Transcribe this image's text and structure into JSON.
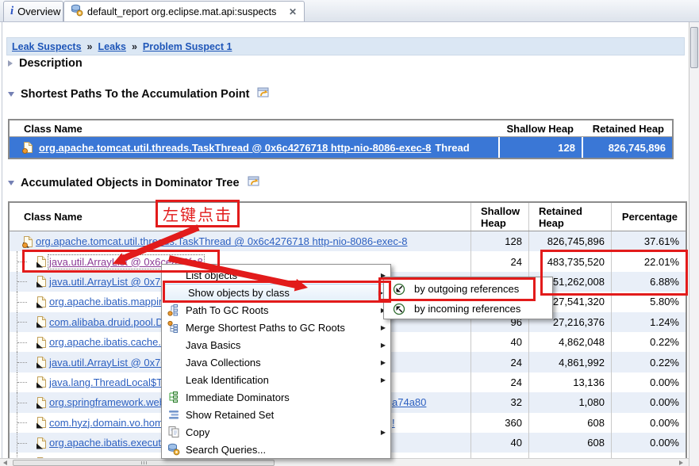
{
  "colors": {
    "selection_blue": "#3a77d6",
    "annotation_red": "#e21b1b",
    "link_blue": "#2b5fc0",
    "visited_purple": "#8b3a96"
  },
  "tabs": [
    {
      "label": "Overview",
      "active": false
    },
    {
      "label": "default_report org.eclipse.mat.api:suspects",
      "active": true
    }
  ],
  "breadcrumb": {
    "separator": "»",
    "items": [
      "Leak Suspects",
      "Leaks",
      "Problem Suspect 1"
    ]
  },
  "sections": {
    "description": {
      "title": "Description",
      "collapsed": true
    },
    "shortest_paths": {
      "title": "Shortest Paths To the Accumulation Point",
      "collapsed": false
    },
    "accumulated": {
      "title": "Accumulated Objects in Dominator Tree",
      "collapsed": false
    }
  },
  "paths_table": {
    "columns": [
      "Class Name",
      "Shallow Heap",
      "Retained Heap"
    ],
    "row": {
      "link": "org.apache.tomcat.util.threads.TaskThread @ 0x6c4276718 http-nio-8086-exec-8",
      "suffix": "Thread",
      "shallow": "128",
      "retained": "826,745,896"
    }
  },
  "dominator_table": {
    "columns": [
      "Class Name",
      "Shallow Heap",
      "Retained Heap",
      "Percentage"
    ],
    "rows": [
      {
        "level": 0,
        "root": true,
        "class_name": "org.apache.tomcat.util.threads.TaskThread @ 0x6c4276718 http-nio-8086-exec-8",
        "shallow": "128",
        "retained": "826,745,896",
        "pct": "37.61%"
      },
      {
        "level": 1,
        "selected": true,
        "visited": true,
        "class_name": "java.util.ArrayList @ 0x6cea76fa8",
        "shallow": "24",
        "retained": "483,735,520",
        "pct": "22.01%"
      },
      {
        "level": 1,
        "class_name": "java.util.ArrayList @ 0x70",
        "shallow": "",
        "retained": "151,262,008",
        "pct": "6.88%"
      },
      {
        "level": 1,
        "class_name": "org.apache.ibatis.mappin",
        "shallow": "",
        "retained": "127,541,320",
        "pct": "5.80%"
      },
      {
        "level": 1,
        "class_name": "com.alibaba.druid.pool.Dr",
        "shallow": "96",
        "retained": "27,216,376",
        "pct": "1.24%"
      },
      {
        "level": 1,
        "class_name": "org.apache.ibatis.cache.C",
        "shallow": "40",
        "retained": "4,862,048",
        "pct": "0.22%"
      },
      {
        "level": 1,
        "class_name": "java.util.ArrayList @ 0x70",
        "shallow": "24",
        "retained": "4,861,992",
        "pct": "0.22%"
      },
      {
        "level": 1,
        "class_name": "java.lang.ThreadLocal$Th",
        "shallow": "24",
        "retained": "13,136",
        "pct": "0.00%"
      },
      {
        "level": 1,
        "class_name": "org.springframework.web",
        "shallow": "32",
        "retained": "1,080",
        "pct": "0.00%"
      },
      {
        "level": 1,
        "class_name": "com.hyzj.domain.vo.hom",
        "shallow": "360",
        "retained": "608",
        "pct": "0.00%"
      },
      {
        "level": 1,
        "class_name": "org.apache.ibatis.executo",
        "shallow": "40",
        "retained": "608",
        "pct": "0.00%"
      },
      {
        "level": 1,
        "partial": true,
        "class_name": "",
        "shallow": "40",
        "retained": "448",
        "pct": "0.00%"
      }
    ],
    "fragments": [
      {
        "text": "a74a80"
      },
      {
        "text": "!"
      }
    ]
  },
  "context_menu": {
    "items": [
      {
        "label": "List objects",
        "submenu": true
      },
      {
        "label": "Show objects by class",
        "submenu": true,
        "highlight": true
      },
      {
        "label": "Path To GC Roots",
        "icon": "gc-roots-icon",
        "submenu": true
      },
      {
        "label": "Merge Shortest Paths to GC Roots",
        "icon": "merge-paths-icon",
        "submenu": true
      },
      {
        "label": "Java Basics",
        "submenu": true
      },
      {
        "label": "Java Collections",
        "submenu": true
      },
      {
        "label": "Leak Identification",
        "submenu": true
      },
      {
        "label": "Immediate Dominators",
        "icon": "immediate-dominators-icon"
      },
      {
        "label": "Show Retained Set",
        "icon": "retained-set-icon"
      },
      {
        "label": "Copy",
        "icon": "copy-icon",
        "submenu": true
      },
      {
        "label": "Search Queries...",
        "icon": "search-queries-icon"
      }
    ],
    "submenu": [
      {
        "label": "by outgoing references",
        "icon": "outgoing-references-icon"
      },
      {
        "label": "by incoming references",
        "icon": "incoming-references-icon"
      }
    ]
  },
  "annotations": {
    "click_label": "左键点击"
  }
}
